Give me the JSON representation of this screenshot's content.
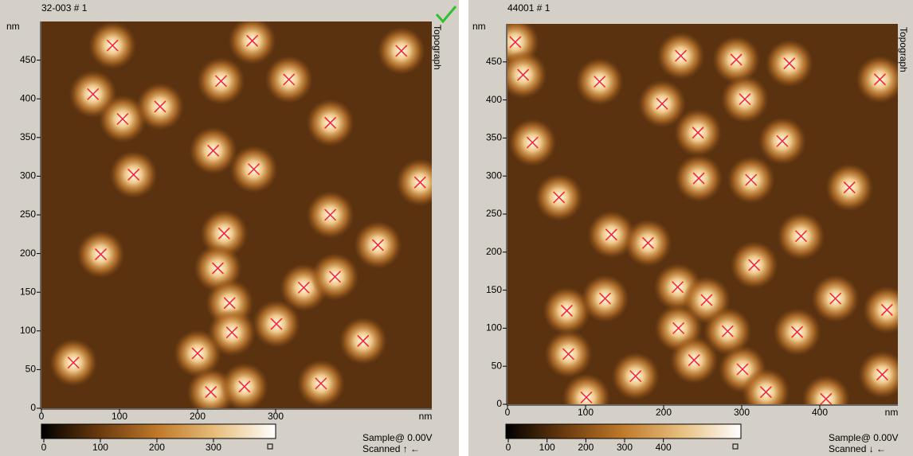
{
  "chart_data": [
    {
      "type": "scatter",
      "title": "32-003 # 1",
      "side_label": "Topograph",
      "x_label": "nm",
      "y_label": "nm",
      "xlim": [
        0,
        500
      ],
      "ylim": [
        0,
        500
      ],
      "xticks": [
        0,
        100,
        200,
        300
      ],
      "yticks": [
        0,
        50,
        100,
        150,
        200,
        250,
        300,
        350,
        400,
        450
      ],
      "marker_color": "#ff2020",
      "x": [
        91,
        270,
        461,
        66,
        230,
        317,
        104,
        152,
        370,
        220,
        118,
        272,
        485,
        370,
        234,
        76,
        431,
        226,
        336,
        376,
        241,
        301,
        244,
        200,
        412,
        41,
        217,
        260,
        358
      ],
      "y": [
        469,
        475,
        462,
        406,
        423,
        425,
        374,
        390,
        369,
        333,
        302,
        309,
        292,
        250,
        226,
        199,
        211,
        181,
        156,
        170,
        136,
        109,
        98,
        71,
        87,
        59,
        21,
        28,
        32
      ],
      "colorbar": {
        "clim": [
          0,
          410
        ],
        "ticks": [
          0,
          100,
          200,
          300
        ],
        "colormap": [
          "#000000",
          "#6b3a0e",
          "#c07a2a",
          "#e8c080",
          "#ffffff"
        ]
      },
      "footer": [
        "Sample@ 0.00V",
        "Scanned ↑ ←"
      ]
    },
    {
      "type": "scatter",
      "title": "44001 # 1",
      "side_label": "Topograph",
      "x_label": "nm",
      "y_label": "nm",
      "xlim": [
        0,
        500
      ],
      "ylim": [
        0,
        500
      ],
      "xticks": [
        0,
        100,
        200,
        300,
        400
      ],
      "yticks": [
        0,
        50,
        100,
        150,
        200,
        250,
        300,
        350,
        400,
        450
      ],
      "marker_color": "#ff2020",
      "x": [
        10,
        20,
        118,
        222,
        293,
        361,
        477,
        32,
        198,
        244,
        304,
        352,
        438,
        66,
        245,
        312,
        133,
        180,
        376,
        316,
        76,
        125,
        218,
        255,
        420,
        486,
        219,
        282,
        371,
        78,
        239,
        301,
        164,
        331,
        101,
        408,
        480
      ],
      "y": [
        476,
        433,
        424,
        458,
        453,
        448,
        427,
        344,
        395,
        357,
        401,
        346,
        285,
        272,
        297,
        295,
        223,
        212,
        221,
        183,
        123,
        139,
        154,
        137,
        139,
        124,
        100,
        96,
        95,
        66,
        58,
        46,
        37,
        16,
        9,
        7,
        39
      ],
      "colorbar": {
        "clim": [
          0,
          600
        ],
        "ticks": [
          0,
          100,
          200,
          300,
          400
        ],
        "colormap": [
          "#000000",
          "#6b3a0e",
          "#c07a2a",
          "#e8c080",
          "#ffffff"
        ]
      },
      "footer": [
        "Sample@ 0.00V",
        "Scanned ↓ ←"
      ]
    }
  ]
}
